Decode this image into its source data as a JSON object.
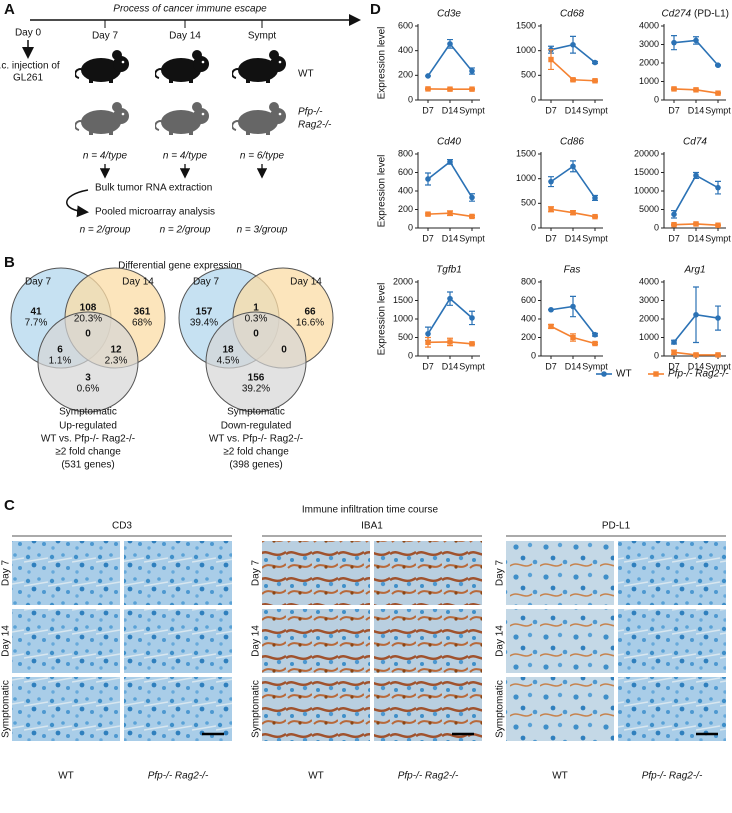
{
  "panel_a": {
    "label": "A",
    "title": "Process of cancer immune escape",
    "start": "Day 0",
    "injection": [
      "i.c. injection of",
      "GL261"
    ],
    "timepoints": [
      "Day 7",
      "Day 14",
      "Sympt"
    ],
    "strains": [
      "WT",
      "Pfp-/-",
      "Rag2-/-"
    ],
    "mice_counts": [
      "n = 4/type",
      "n = 4/type",
      "n = 6/type"
    ],
    "steps": [
      "Bulk tumor RNA extraction",
      "Pooled microarray analysis"
    ],
    "group_counts": [
      "n = 2/group",
      "n = 2/group",
      "n = 3/group"
    ]
  },
  "panel_b": {
    "label": "B",
    "title": "Differential gene expression",
    "venns": [
      {
        "set_labels": [
          "Day 7",
          "Day 14",
          "Symptomatic"
        ],
        "regions": [
          {
            "count": 41,
            "percent": "7.7%"
          },
          {
            "count": 108,
            "percent": "20.3%"
          },
          {
            "count": 361,
            "percent": "68%"
          },
          {
            "count": 6,
            "percent": "1.1%"
          },
          {
            "count": 0
          },
          {
            "count": 12,
            "percent": "2.3%"
          },
          {
            "count": 3,
            "percent": "0.6%"
          }
        ],
        "caption": [
          "Up-regulated",
          "WT vs. Pfp-/- Rag2-/-",
          "≥2 fold change",
          "(531 genes)"
        ]
      },
      {
        "set_labels": [
          "Day 7",
          "Day 14",
          "Symptomatic"
        ],
        "regions": [
          {
            "count": 157,
            "percent": "39.4%"
          },
          {
            "count": 1,
            "percent": "0.3%"
          },
          {
            "count": 66,
            "percent": "16.6%"
          },
          {
            "count": 18,
            "percent": "4.5%"
          },
          {
            "count": 0
          },
          {
            "count": 0
          },
          {
            "count": 156,
            "percent": "39.2%"
          }
        ],
        "caption": [
          "Down-regulated",
          "WT vs. Pfp-/- Rag2-/-",
          "≥2 fold change",
          "(398 genes)"
        ]
      }
    ]
  },
  "panel_c": {
    "label": "C",
    "title": "Immune infiltration time course",
    "groups": [
      {
        "stain": "CD3",
        "rows": [
          "Day 7",
          "Day 14",
          "Symptomatic"
        ],
        "columns": [
          "WT",
          "Pfp-/- Rag2-/-"
        ]
      },
      {
        "stain": "IBA1",
        "rows": [
          "Day 7",
          "Day 14",
          "Symptomatic"
        ],
        "columns": [
          "WT",
          "Pfp-/- Rag2-/-"
        ]
      },
      {
        "stain": "PD-L1",
        "rows": [
          "Day 7",
          "Day 14",
          "Symptomatic"
        ],
        "columns": [
          "WT",
          "Pfp-/- Rag2-/-"
        ]
      }
    ]
  },
  "panel_d": {
    "label": "D",
    "legend": [
      {
        "name": "WT",
        "color": "#2b72b5"
      },
      {
        "name": "Pfp-/- Rag2-/-",
        "color": "#f58231"
      }
    ]
  },
  "chart_data": [
    {
      "type": "line",
      "title": "Cd3e",
      "ylabel": "Expression level",
      "categories": [
        "D7",
        "D14",
        "Sympt"
      ],
      "ylim": [
        0,
        600
      ],
      "yticks": [
        0,
        200,
        400,
        600
      ],
      "series": [
        {
          "color": "#2b72b5",
          "marker": "circle",
          "values": [
            195,
            455,
            235
          ],
          "errors": [
            0,
            35,
            25
          ]
        },
        {
          "color": "#f58231",
          "marker": "square",
          "values": [
            90,
            88,
            88
          ],
          "errors": [
            5,
            5,
            5
          ]
        }
      ]
    },
    {
      "type": "line",
      "title": "Cd68",
      "categories": [
        "D7",
        "D14",
        "Sympt"
      ],
      "ylim": [
        0,
        1500
      ],
      "yticks": [
        0,
        500,
        1000,
        1500
      ],
      "series": [
        {
          "color": "#2b72b5",
          "marker": "circle",
          "values": [
            1020,
            1120,
            760
          ],
          "errors": [
            70,
            170,
            20
          ]
        },
        {
          "color": "#f58231",
          "marker": "square",
          "values": [
            820,
            410,
            390
          ],
          "errors": [
            200,
            20,
            15
          ]
        }
      ]
    },
    {
      "type": "line",
      "title": "Cd274",
      "subtitle": "(PD-L1)",
      "categories": [
        "D7",
        "D14",
        "Sympt"
      ],
      "ylim": [
        0,
        4000
      ],
      "yticks": [
        0,
        1000,
        2000,
        3000,
        4000
      ],
      "series": [
        {
          "color": "#2b72b5",
          "marker": "circle",
          "values": [
            3100,
            3220,
            1880
          ],
          "errors": [
            380,
            200,
            30
          ]
        },
        {
          "color": "#f58231",
          "marker": "square",
          "values": [
            600,
            550,
            370
          ],
          "errors": [
            40,
            30,
            30
          ]
        }
      ]
    },
    {
      "type": "line",
      "title": "Cd40",
      "ylabel": "Expression level",
      "categories": [
        "D7",
        "D14",
        "Sympt"
      ],
      "ylim": [
        0,
        800
      ],
      "yticks": [
        0,
        200,
        400,
        600,
        800
      ],
      "series": [
        {
          "color": "#2b72b5",
          "marker": "circle",
          "values": [
            530,
            715,
            330
          ],
          "errors": [
            65,
            25,
            40
          ]
        },
        {
          "color": "#f58231",
          "marker": "square",
          "values": [
            150,
            160,
            125
          ],
          "errors": [
            10,
            25,
            10
          ]
        }
      ]
    },
    {
      "type": "line",
      "title": "Cd86",
      "categories": [
        "D7",
        "D14",
        "Sympt"
      ],
      "ylim": [
        0,
        1500
      ],
      "yticks": [
        0,
        500,
        1000,
        1500
      ],
      "series": [
        {
          "color": "#2b72b5",
          "marker": "circle",
          "values": [
            940,
            1250,
            610
          ],
          "errors": [
            100,
            110,
            50
          ]
        },
        {
          "color": "#f58231",
          "marker": "square",
          "values": [
            380,
            310,
            230
          ],
          "errors": [
            50,
            40,
            10
          ]
        }
      ]
    },
    {
      "type": "line",
      "title": "Cd74",
      "categories": [
        "D7",
        "D14",
        "Sympt"
      ],
      "ylim": [
        0,
        20000
      ],
      "yticks": [
        0,
        5000,
        10000,
        15000,
        20000
      ],
      "series": [
        {
          "color": "#2b72b5",
          "marker": "circle",
          "values": [
            3700,
            14200,
            10900
          ],
          "errors": [
            1000,
            800,
            1700
          ]
        },
        {
          "color": "#f58231",
          "marker": "square",
          "values": [
            900,
            1100,
            750
          ],
          "errors": [
            150,
            150,
            100
          ]
        }
      ]
    },
    {
      "type": "line",
      "title": "Tgfb1",
      "ylabel": "Expression level",
      "categories": [
        "D7",
        "D14",
        "Sympt"
      ],
      "ylim": [
        0,
        2000
      ],
      "yticks": [
        0,
        500,
        1000,
        1500,
        2000
      ],
      "series": [
        {
          "color": "#2b72b5",
          "marker": "circle",
          "values": [
            600,
            1550,
            1030
          ],
          "errors": [
            180,
            180,
            180
          ]
        },
        {
          "color": "#f58231",
          "marker": "square",
          "values": [
            370,
            380,
            330
          ],
          "errors": [
            130,
            100,
            20
          ]
        }
      ]
    },
    {
      "type": "line",
      "title": "Fas",
      "categories": [
        "D7",
        "D14",
        "Sympt"
      ],
      "ylim": [
        0,
        800
      ],
      "yticks": [
        0,
        200,
        400,
        600,
        800
      ],
      "series": [
        {
          "color": "#2b72b5",
          "marker": "circle",
          "values": [
            500,
            535,
            230
          ],
          "errors": [
            0,
            110,
            15
          ]
        },
        {
          "color": "#f58231",
          "marker": "square",
          "values": [
            320,
            200,
            135
          ],
          "errors": [
            20,
            40,
            10
          ]
        }
      ]
    },
    {
      "type": "line",
      "title": "Arg1",
      "categories": [
        "D7",
        "D14",
        "Sympt"
      ],
      "ylim": [
        0,
        4000
      ],
      "yticks": [
        0,
        1000,
        2000,
        3000,
        4000
      ],
      "series": [
        {
          "color": "#2b72b5",
          "marker": "circle",
          "values": [
            750,
            2230,
            2050
          ],
          "errors": [
            100,
            1500,
            650
          ]
        },
        {
          "color": "#f58231",
          "marker": "square",
          "values": [
            200,
            60,
            60
          ],
          "errors": [
            120,
            50,
            30
          ]
        }
      ]
    }
  ]
}
